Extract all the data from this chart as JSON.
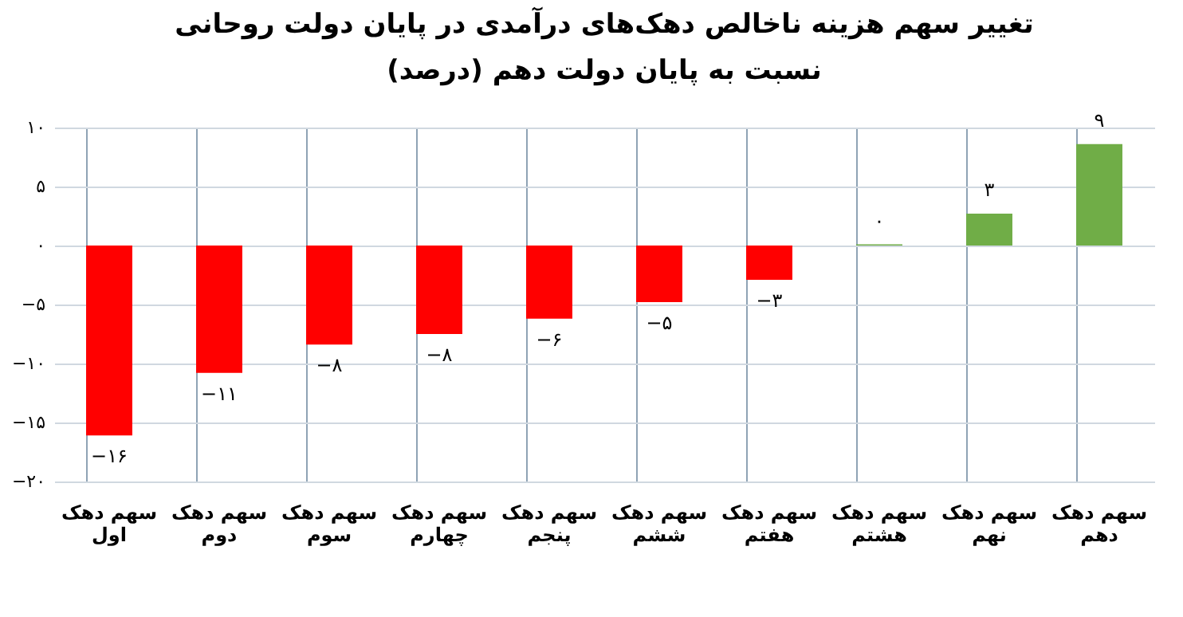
{
  "chart_data": {
    "type": "bar",
    "title": "تغییر سهم هزینه ناخالص دهک‌های درآمدی در پایان دولت روحانی",
    "subtitle": "نسبت به پایان دولت دهم (درصد)",
    "categories": [
      "سهم دهک اول",
      "سهم دهک دوم",
      "سهم دهک سوم",
      "سهم دهک چهارم",
      "سهم دهک پنجم",
      "سهم دهک ششم",
      "سهم دهک هفتم",
      "سهم دهک هشتم",
      "سهم دهک نهم",
      "سهم دهک دهم"
    ],
    "values": [
      -16.1,
      -10.8,
      -8.4,
      -7.5,
      -6.2,
      -4.8,
      -2.9,
      0.1,
      2.7,
      8.6
    ],
    "value_labels": [
      "−۱۶",
      "−۱۱",
      "−۸",
      "−۸",
      "−۶",
      "−۵",
      "−۳",
      "۰",
      "۳",
      "۹"
    ],
    "colors": [
      "#ff0000",
      "#ff0000",
      "#ff0000",
      "#ff0000",
      "#ff0000",
      "#ff0000",
      "#ff0000",
      "#70ad47",
      "#70ad47",
      "#70ad47"
    ],
    "ylim": [
      -20,
      10
    ],
    "yticks": [
      {
        "value": 10,
        "label": "۱۰"
      },
      {
        "value": 5,
        "label": "۵"
      },
      {
        "value": 0,
        "label": "۰"
      },
      {
        "value": -5,
        "label": "−۵"
      },
      {
        "value": -10,
        "label": "−۱۰"
      },
      {
        "value": -15,
        "label": "−۱۵"
      },
      {
        "value": -20,
        "label": "−۲۰"
      }
    ],
    "grid": true,
    "legend": false
  }
}
